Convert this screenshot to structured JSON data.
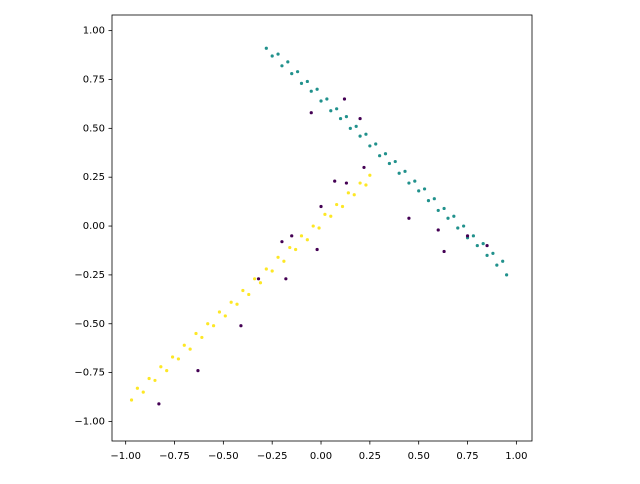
{
  "chart_data": {
    "type": "scatter",
    "xlim": [
      -1.07,
      1.08
    ],
    "ylim": [
      -1.1,
      1.08
    ],
    "grid": false,
    "xticks": [
      {
        "value": -1.0,
        "label": "−1.00"
      },
      {
        "value": -0.75,
        "label": "−0.75"
      },
      {
        "value": -0.5,
        "label": "−0.50"
      },
      {
        "value": -0.25,
        "label": "−0.25"
      },
      {
        "value": 0,
        "label": "0.00"
      },
      {
        "value": 0.25,
        "label": "0.25"
      },
      {
        "value": 0.5,
        "label": "0.50"
      },
      {
        "value": 0.75,
        "label": "0.75"
      },
      {
        "value": 1.0,
        "label": "1.00"
      }
    ],
    "yticks": [
      {
        "value": -1.0,
        "label": "−1.00"
      },
      {
        "value": -0.75,
        "label": "−0.75"
      },
      {
        "value": -0.5,
        "label": "−0.50"
      },
      {
        "value": -0.25,
        "label": "−0.25"
      },
      {
        "value": 0,
        "label": "0.00"
      },
      {
        "value": 0.25,
        "label": "0.25"
      },
      {
        "value": 0.5,
        "label": "0.50"
      },
      {
        "value": 0.75,
        "label": "0.75"
      },
      {
        "value": 1.0,
        "label": "1.00"
      }
    ],
    "series": [
      {
        "color": "#21918c",
        "x": [
          -0.28,
          -0.25,
          -0.22,
          -0.2,
          -0.17,
          -0.15,
          -0.12,
          -0.1,
          -0.07,
          -0.05,
          -0.02,
          0.0,
          0.03,
          0.05,
          0.08,
          0.1,
          0.13,
          0.15,
          0.18,
          0.2,
          0.23,
          0.25,
          0.28,
          0.3,
          0.33,
          0.35,
          0.38,
          0.4,
          0.43,
          0.45,
          0.48,
          0.5,
          0.53,
          0.55,
          0.58,
          0.6,
          0.63,
          0.65,
          0.68,
          0.7,
          0.73,
          0.75,
          0.78,
          0.8,
          0.83,
          0.85,
          0.88,
          0.9,
          0.93,
          0.95
        ],
        "y": [
          0.91,
          0.87,
          0.88,
          0.82,
          0.84,
          0.78,
          0.79,
          0.73,
          0.74,
          0.69,
          0.7,
          0.64,
          0.65,
          0.59,
          0.6,
          0.55,
          0.56,
          0.5,
          0.51,
          0.46,
          0.47,
          0.41,
          0.42,
          0.36,
          0.37,
          0.32,
          0.33,
          0.27,
          0.28,
          0.22,
          0.23,
          0.18,
          0.19,
          0.13,
          0.14,
          0.08,
          0.09,
          0.04,
          0.05,
          -0.01,
          0.0,
          -0.06,
          -0.05,
          -0.1,
          -0.09,
          -0.15,
          -0.14,
          -0.2,
          -0.18,
          -0.25
        ]
      },
      {
        "color": "#fde725",
        "x": [
          -0.97,
          -0.94,
          -0.91,
          -0.88,
          -0.85,
          -0.82,
          -0.79,
          -0.76,
          -0.73,
          -0.7,
          -0.67,
          -0.64,
          -0.61,
          -0.58,
          -0.55,
          -0.52,
          -0.49,
          -0.46,
          -0.43,
          -0.4,
          -0.37,
          -0.34,
          -0.31,
          -0.28,
          -0.25,
          -0.22,
          -0.19,
          -0.16,
          -0.13,
          -0.1,
          -0.07,
          -0.04,
          -0.01,
          0.02,
          0.05,
          0.08,
          0.11,
          0.14,
          0.17,
          0.2,
          0.23,
          0.25
        ],
        "y": [
          -0.89,
          -0.83,
          -0.85,
          -0.78,
          -0.79,
          -0.72,
          -0.74,
          -0.67,
          -0.68,
          -0.61,
          -0.63,
          -0.55,
          -0.57,
          -0.5,
          -0.51,
          -0.44,
          -0.46,
          -0.39,
          -0.4,
          -0.33,
          -0.35,
          -0.27,
          -0.29,
          -0.22,
          -0.23,
          -0.16,
          -0.18,
          -0.11,
          -0.12,
          -0.05,
          -0.07,
          0.0,
          -0.01,
          0.06,
          0.05,
          0.11,
          0.1,
          0.17,
          0.16,
          0.22,
          0.21,
          0.26
        ]
      },
      {
        "color": "#440154",
        "x": [
          -0.05,
          0.12,
          0.2,
          0.45,
          0.6,
          0.63,
          0.75,
          0.85,
          0.07,
          0.22,
          -0.15,
          -0.2,
          -0.18,
          -0.32,
          -0.02,
          0.0,
          -0.83,
          -0.63,
          -0.41,
          0.13
        ],
        "y": [
          0.58,
          0.65,
          0.55,
          0.04,
          -0.02,
          -0.13,
          -0.05,
          -0.1,
          0.23,
          0.3,
          -0.05,
          -0.08,
          -0.27,
          -0.27,
          -0.12,
          0.1,
          -0.91,
          -0.74,
          -0.51,
          0.22
        ]
      }
    ]
  }
}
